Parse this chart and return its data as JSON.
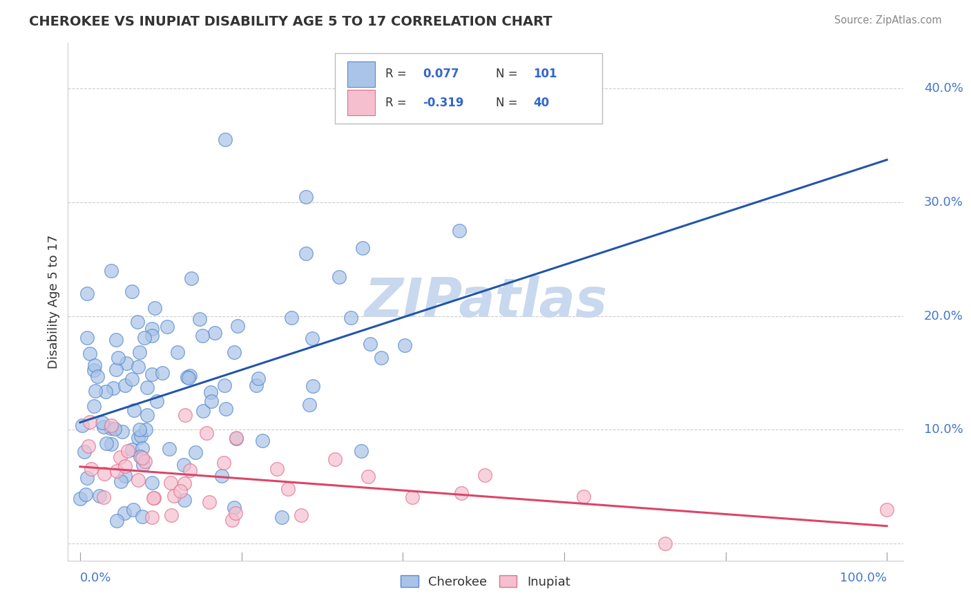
{
  "title": "CHEROKEE VS INUPIAT DISABILITY AGE 5 TO 17 CORRELATION CHART",
  "source": "Source: ZipAtlas.com",
  "ylabel": "Disability Age 5 to 17",
  "cherokee_color": "#aac4e8",
  "cherokee_edge": "#5588cc",
  "inupiat_color": "#f5bfcf",
  "inupiat_edge": "#e07090",
  "trend_cherokee": "#2255aa",
  "trend_inupiat": "#dd4466",
  "legend_blue": "#3366cc",
  "legend_dark": "#333333",
  "watermark_color": "#c8d8ee",
  "grid_color": "#cccccc",
  "ytick_color": "#4477cc"
}
